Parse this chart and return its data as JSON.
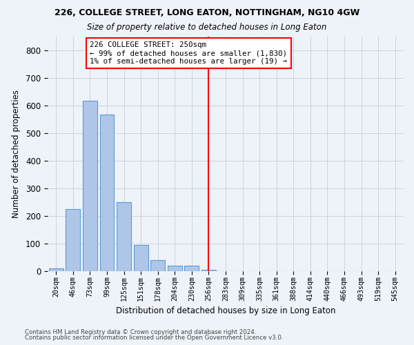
{
  "title1": "226, COLLEGE STREET, LONG EATON, NOTTINGHAM, NG10 4GW",
  "title2": "Size of property relative to detached houses in Long Eaton",
  "xlabel": "Distribution of detached houses by size in Long Eaton",
  "ylabel": "Number of detached properties",
  "bar_labels": [
    "20sqm",
    "46sqm",
    "73sqm",
    "99sqm",
    "125sqm",
    "151sqm",
    "178sqm",
    "204sqm",
    "230sqm",
    "256sqm",
    "283sqm",
    "309sqm",
    "335sqm",
    "361sqm",
    "388sqm",
    "414sqm",
    "440sqm",
    "466sqm",
    "493sqm",
    "519sqm",
    "545sqm"
  ],
  "bar_values": [
    10,
    225,
    617,
    566,
    250,
    94,
    40,
    19,
    19,
    5,
    0,
    0,
    0,
    0,
    0,
    0,
    0,
    0,
    0,
    0,
    0
  ],
  "bar_color": "#aec6e8",
  "bar_edge_color": "#5b9bd5",
  "property_line_x": 9.0,
  "annotation_text": "226 COLLEGE STREET: 250sqm\n← 99% of detached houses are smaller (1,830)\n1% of semi-detached houses are larger (19) →",
  "annotation_box_color": "white",
  "annotation_box_edge": "red",
  "vline_color": "red",
  "ylim": [
    0,
    850
  ],
  "yticks": [
    0,
    100,
    200,
    300,
    400,
    500,
    600,
    700,
    800
  ],
  "footer1": "Contains HM Land Registry data © Crown copyright and database right 2024.",
  "footer2": "Contains public sector information licensed under the Open Government Licence v3.0.",
  "bg_color": "#eef2f9",
  "grid_color": "#c8cdd8"
}
